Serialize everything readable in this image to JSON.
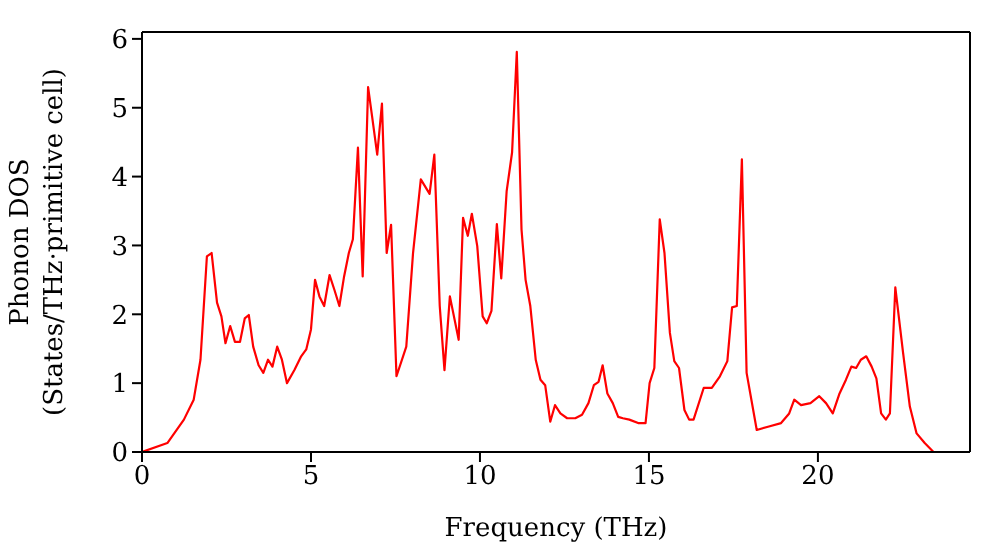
{
  "chart_data": {
    "type": "line",
    "xlabel": "Frequency (THz)",
    "ylabel": "Phonon DOS\n(States/THz·primitive cell)",
    "x": [
      0,
      0.75,
      1.24,
      1.53,
      1.73,
      1.92,
      2.06,
      2.22,
      2.35,
      2.47,
      2.61,
      2.75,
      2.9,
      3.04,
      3.16,
      3.29,
      3.45,
      3.59,
      3.73,
      3.86,
      4.0,
      4.14,
      4.29,
      4.51,
      4.71,
      4.86,
      5.0,
      5.12,
      5.25,
      5.39,
      5.55,
      5.69,
      5.84,
      5.98,
      6.12,
      6.24,
      6.39,
      6.53,
      6.69,
      6.82,
      6.96,
      7.1,
      7.24,
      7.37,
      7.53,
      7.82,
      8.02,
      8.25,
      8.51,
      8.65,
      8.81,
      8.95,
      9.11,
      9.37,
      9.5,
      9.64,
      9.76,
      9.92,
      10.08,
      10.2,
      10.34,
      10.5,
      10.63,
      10.79,
      10.95,
      11.09,
      11.23,
      11.35,
      11.49,
      11.65,
      11.79,
      11.93,
      12.08,
      12.22,
      12.38,
      12.58,
      12.82,
      13.02,
      13.21,
      13.37,
      13.51,
      13.63,
      13.77,
      13.93,
      14.09,
      14.23,
      14.42,
      14.68,
      14.9,
      15.02,
      15.16,
      15.32,
      15.46,
      15.62,
      15.75,
      15.89,
      16.05,
      16.19,
      16.32,
      16.62,
      16.86,
      17.1,
      17.32,
      17.46,
      17.6,
      17.75,
      17.89,
      18.19,
      18.55,
      18.91,
      19.15,
      19.3,
      19.5,
      19.78,
      20.04,
      20.24,
      20.44,
      20.64,
      20.83,
      20.99,
      21.13,
      21.27,
      21.43,
      21.59,
      21.73,
      21.87,
      22.01,
      22.13,
      22.29,
      22.52,
      22.72,
      22.92,
      23.16,
      23.42,
      24.5
    ],
    "series": [
      {
        "color": "#ff0000",
        "values": [
          0,
          0.13,
          0.47,
          0.76,
          1.34,
          2.84,
          2.89,
          2.17,
          1.97,
          1.58,
          1.83,
          1.6,
          1.6,
          1.94,
          1.99,
          1.53,
          1.26,
          1.15,
          1.34,
          1.24,
          1.53,
          1.34,
          1.0,
          1.19,
          1.39,
          1.49,
          1.78,
          2.5,
          2.26,
          2.12,
          2.57,
          2.36,
          2.12,
          2.55,
          2.89,
          3.09,
          4.42,
          2.55,
          5.3,
          4.83,
          4.32,
          5.06,
          2.89,
          3.3,
          1.1,
          1.53,
          2.89,
          3.96,
          3.75,
          4.32,
          2.12,
          1.19,
          2.26,
          1.63,
          3.4,
          3.14,
          3.46,
          2.99,
          1.97,
          1.87,
          2.05,
          3.31,
          2.52,
          3.79,
          4.35,
          5.81,
          3.23,
          2.5,
          2.12,
          1.34,
          1.05,
          0.97,
          0.44,
          0.68,
          0.56,
          0.49,
          0.49,
          0.54,
          0.71,
          0.97,
          1.02,
          1.26,
          0.85,
          0.71,
          0.51,
          0.49,
          0.47,
          0.42,
          0.42,
          1.0,
          1.22,
          3.38,
          2.89,
          1.73,
          1.32,
          1.22,
          0.61,
          0.47,
          0.47,
          0.93,
          0.93,
          1.1,
          1.32,
          2.1,
          2.12,
          4.25,
          1.15,
          0.32,
          0.37,
          0.42,
          0.56,
          0.76,
          0.68,
          0.71,
          0.81,
          0.71,
          0.56,
          0.85,
          1.05,
          1.24,
          1.22,
          1.34,
          1.39,
          1.24,
          1.07,
          0.56,
          0.47,
          0.56,
          2.39,
          1.44,
          0.66,
          0.27,
          0.13,
          0,
          0
        ]
      }
    ],
    "xlim": [
      0,
      24.5
    ],
    "ylim": [
      0,
      6.1
    ],
    "xticks": [
      0,
      5,
      10,
      15,
      20
    ],
    "yticks": [
      0,
      1,
      2,
      3,
      4,
      5,
      6
    ],
    "marker": "none",
    "line_style": "solid"
  }
}
